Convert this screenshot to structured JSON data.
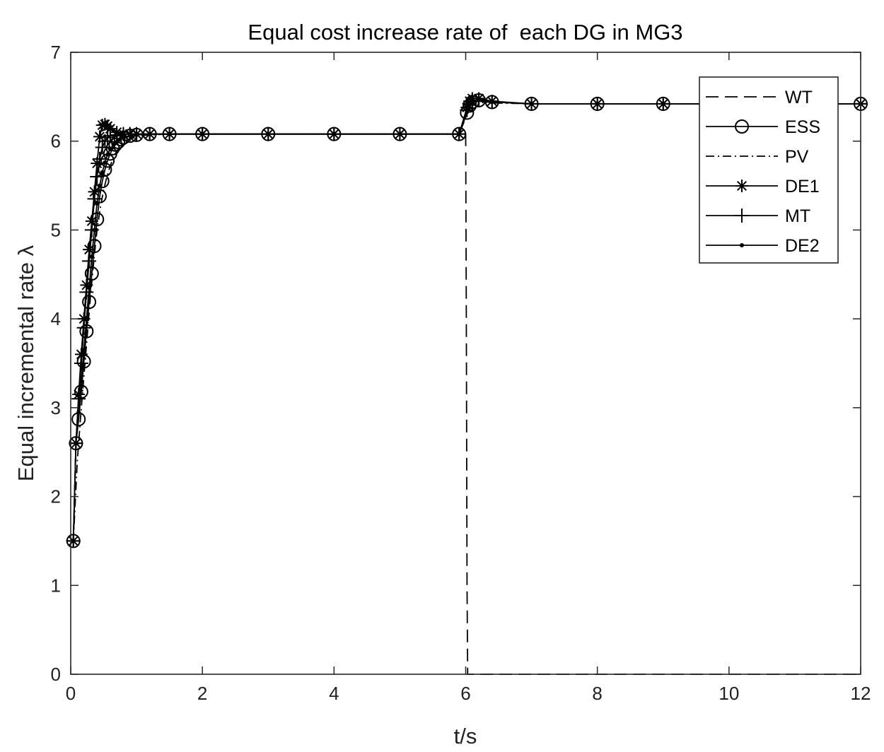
{
  "chart_data": {
    "type": "line",
    "title": "Equal cost increase rate of  each DG in MG3",
    "xlabel": "t/s",
    "ylabel": "Equal incremental rate λ",
    "xlim": [
      0,
      12
    ],
    "ylim": [
      0,
      7
    ],
    "xticks": [
      0,
      2,
      4,
      6,
      8,
      10,
      12
    ],
    "yticks": [
      0,
      1,
      2,
      3,
      4,
      5,
      6,
      7
    ],
    "grid": false,
    "legend_position": "top-right",
    "series": [
      {
        "name": "WT",
        "style": "dashed",
        "marker": "none",
        "x": [
          5.99,
          6.0,
          6.01,
          6.02,
          6.03,
          6.05,
          12.0
        ],
        "y": [
          6.08,
          6.08,
          4.0,
          1.0,
          0.0,
          0.0,
          0.0
        ]
      },
      {
        "name": "ESS",
        "style": "solid",
        "marker": "circle",
        "x": [
          0.04,
          0.08,
          0.12,
          0.16,
          0.2,
          0.24,
          0.28,
          0.32,
          0.36,
          0.4,
          0.44,
          0.48,
          0.52,
          0.56,
          0.6,
          0.64,
          0.68,
          0.72,
          0.76,
          0.8,
          0.9,
          1.0,
          1.2,
          1.5,
          2.0,
          3.0,
          4.0,
          5.0,
          5.9,
          6.02,
          6.06,
          6.1,
          6.2,
          6.4,
          7.0,
          8.0,
          9.0,
          10.0,
          11.0,
          12.0
        ],
        "y": [
          1.5,
          2.6,
          2.87,
          3.18,
          3.52,
          3.86,
          4.19,
          4.51,
          4.82,
          5.12,
          5.38,
          5.55,
          5.68,
          5.78,
          5.86,
          5.92,
          5.96,
          5.99,
          6.02,
          6.04,
          6.06,
          6.07,
          6.08,
          6.08,
          6.08,
          6.08,
          6.08,
          6.08,
          6.08,
          6.32,
          6.4,
          6.44,
          6.46,
          6.44,
          6.42,
          6.42,
          6.42,
          6.42,
          6.42,
          6.42
        ]
      },
      {
        "name": "PV",
        "style": "dashdot",
        "marker": "none",
        "x": [
          0.04,
          0.1,
          0.15,
          0.2,
          0.25,
          0.3,
          0.35,
          0.4,
          0.45,
          0.5,
          0.55,
          0.6,
          0.65,
          0.7,
          0.75,
          0.8,
          0.9,
          1.0,
          1.2,
          1.5,
          2.0,
          3.0,
          4.0,
          5.0,
          5.9,
          6.02,
          6.06,
          6.1,
          6.2,
          6.4,
          7.0,
          8.0,
          9.0,
          10.0,
          11.0,
          12.0
        ],
        "y": [
          1.5,
          2.4,
          2.9,
          3.35,
          3.8,
          4.25,
          4.65,
          5.0,
          5.25,
          5.45,
          5.6,
          5.72,
          5.82,
          5.89,
          5.94,
          5.98,
          6.03,
          6.06,
          6.07,
          6.08,
          6.08,
          6.08,
          6.08,
          6.08,
          6.08,
          6.3,
          6.38,
          6.42,
          6.45,
          6.43,
          6.42,
          6.42,
          6.42,
          6.42,
          6.42,
          6.42
        ]
      },
      {
        "name": "DE1",
        "style": "solid",
        "marker": "asterisk",
        "x": [
          0.04,
          0.08,
          0.12,
          0.16,
          0.2,
          0.24,
          0.28,
          0.32,
          0.36,
          0.4,
          0.44,
          0.48,
          0.52,
          0.56,
          0.6,
          0.7,
          0.8,
          0.9,
          1.0,
          1.2,
          1.5,
          2.0,
          3.0,
          4.0,
          5.0,
          5.9,
          6.02,
          6.06,
          6.1,
          6.2,
          6.4,
          7.0,
          8.0,
          9.0,
          10.0,
          11.0,
          12.0
        ],
        "y": [
          1.5,
          2.6,
          3.15,
          3.6,
          4.0,
          4.38,
          4.78,
          5.1,
          5.43,
          5.75,
          6.05,
          6.18,
          6.19,
          6.17,
          6.14,
          6.1,
          6.08,
          6.08,
          6.08,
          6.08,
          6.08,
          6.08,
          6.08,
          6.08,
          6.08,
          6.08,
          6.38,
          6.45,
          6.48,
          6.48,
          6.45,
          6.42,
          6.42,
          6.42,
          6.42,
          6.42,
          6.42
        ]
      },
      {
        "name": "MT",
        "style": "solid",
        "marker": "plus",
        "x": [
          0.04,
          0.08,
          0.12,
          0.16,
          0.2,
          0.24,
          0.28,
          0.32,
          0.36,
          0.4,
          0.44,
          0.48,
          0.52,
          0.56,
          0.6,
          0.7,
          0.8,
          0.9,
          1.0,
          1.2,
          1.5,
          2.0,
          3.0,
          4.0,
          5.0,
          5.9,
          6.02,
          6.06,
          6.1,
          6.2,
          6.4,
          7.0,
          8.0,
          9.0,
          10.0,
          11.0,
          12.0
        ],
        "y": [
          1.5,
          2.6,
          3.1,
          3.5,
          3.9,
          4.3,
          4.65,
          5.0,
          5.35,
          5.6,
          5.8,
          5.93,
          6.0,
          6.04,
          6.06,
          6.07,
          6.08,
          6.08,
          6.08,
          6.08,
          6.08,
          6.08,
          6.08,
          6.08,
          6.08,
          6.08,
          6.35,
          6.42,
          6.45,
          6.46,
          6.44,
          6.42,
          6.42,
          6.42,
          6.42,
          6.42,
          6.42
        ]
      },
      {
        "name": "DE2",
        "style": "solid",
        "marker": "point",
        "x": [
          0.04,
          0.08,
          0.12,
          0.16,
          0.2,
          0.24,
          0.28,
          0.32,
          0.36,
          0.4,
          0.44,
          0.48,
          0.52,
          0.56,
          0.6,
          0.65,
          0.7,
          0.75,
          0.8,
          0.9,
          1.0,
          1.2,
          1.5,
          2.0,
          3.0,
          4.0,
          5.0,
          5.9,
          6.02,
          6.06,
          6.1,
          6.2,
          6.4,
          7.0,
          8.0,
          9.0,
          10.0,
          11.0,
          12.0
        ],
        "y": [
          1.5,
          2.6,
          2.95,
          3.3,
          3.65,
          4.0,
          4.35,
          4.7,
          5.0,
          5.3,
          5.5,
          5.65,
          5.76,
          5.85,
          5.91,
          5.96,
          5.99,
          6.02,
          6.04,
          6.06,
          6.07,
          6.08,
          6.08,
          6.08,
          6.08,
          6.08,
          6.08,
          6.08,
          6.33,
          6.41,
          6.45,
          6.47,
          6.44,
          6.42,
          6.42,
          6.42,
          6.42,
          6.42,
          6.42
        ]
      }
    ]
  }
}
